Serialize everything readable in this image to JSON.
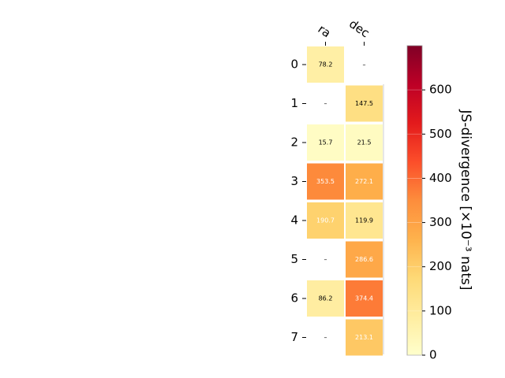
{
  "chart_data": {
    "type": "heatmap",
    "columns": [
      "ra",
      "dec"
    ],
    "rows": [
      "0",
      "1",
      "2",
      "3",
      "4",
      "5",
      "6",
      "7"
    ],
    "values": [
      [
        78.2,
        null
      ],
      [
        null,
        147.5
      ],
      [
        15.7,
        21.5
      ],
      [
        353.5,
        272.1
      ],
      [
        190.7,
        119.9
      ],
      [
        null,
        286.6
      ],
      [
        86.2,
        374.4
      ],
      [
        null,
        213.1
      ]
    ],
    "cell_labels": [
      [
        "78.2",
        "–"
      ],
      [
        "–",
        "147.5"
      ],
      [
        "15.7",
        "21.5"
      ],
      [
        "353.5",
        "272.1"
      ],
      [
        "190.7",
        "119.9"
      ],
      [
        "–",
        "286.6"
      ],
      [
        "86.2",
        "374.4"
      ],
      [
        "–",
        "213.1"
      ]
    ],
    "colorbar": {
      "label": "JS-divergence [×10⁻³ nats]",
      "range": [
        0,
        700
      ],
      "ticks": [
        "0",
        "100",
        "200",
        "300",
        "400",
        "500",
        "600"
      ],
      "colormap": "YlOrRd"
    }
  }
}
